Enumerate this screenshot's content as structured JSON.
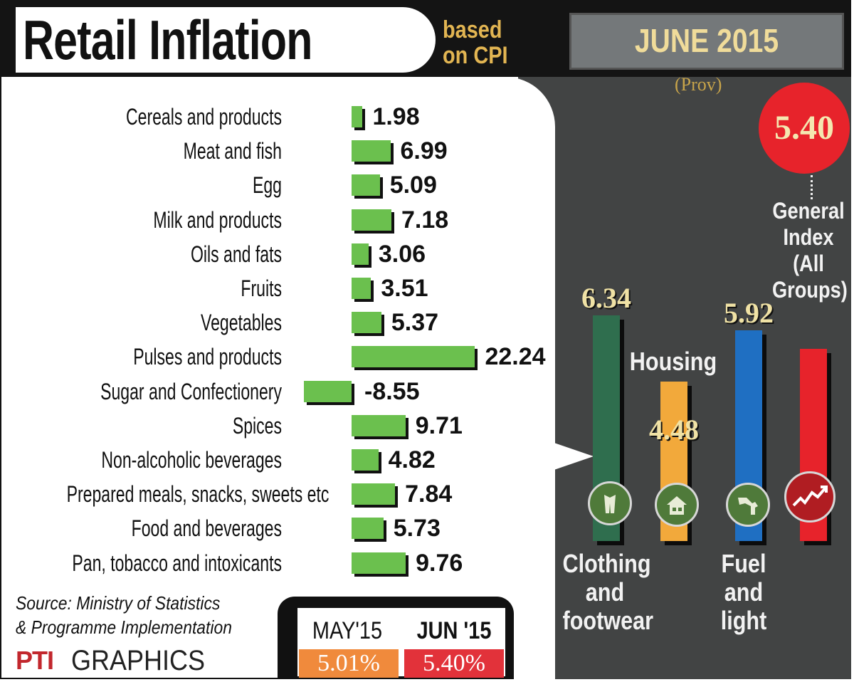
{
  "header": {
    "title": "Retail Inflation",
    "subtitle": "based on CPI",
    "month": "JUNE 2015",
    "prov": "(Prov)"
  },
  "general_index": {
    "value": "5.40",
    "label": "General Index (All Groups)"
  },
  "colors": {
    "food_bar": "#6bc04e",
    "clothing": "#2f6e4e",
    "housing": "#f2a93b",
    "fuel": "#1f6fc2",
    "general": "#e7232b",
    "panel": "#424444",
    "may_box": "#f08a3c",
    "jun_box": "#e2323a"
  },
  "icons": {
    "clothing": "clothing-icon",
    "housing": "house-icon",
    "fuel": "fuel-pump-icon",
    "general": "rising-graph-icon"
  },
  "chart_data": [
    {
      "type": "bar",
      "orientation": "horizontal",
      "categories": [
        "Cereals and products",
        "Meat and fish",
        "Egg",
        "Milk and products",
        "Oils and fats",
        "Fruits",
        "Vegetables",
        "Pulses and products",
        "Sugar and Confectionery",
        "Spices",
        "Non-alcoholic beverages",
        "Prepared meals, snacks, sweets etc",
        "Food and beverages",
        "Pan, tobacco and intoxicants"
      ],
      "values": [
        1.98,
        6.99,
        5.09,
        7.18,
        3.06,
        3.51,
        5.37,
        22.24,
        -8.55,
        9.71,
        4.82,
        7.84,
        5.73,
        9.76
      ],
      "labels": [
        "1.98",
        "6.99",
        "5.09",
        "7.18",
        "3.06",
        "3.51",
        "5.37",
        "22.24",
        "-8.55",
        "9.71",
        "4.82",
        "7.84",
        "5.73",
        "9.76"
      ]
    },
    {
      "type": "bar",
      "orientation": "vertical",
      "categories": [
        "Clothing and footwear",
        "Housing",
        "Fuel and light",
        "General Index (All Groups)"
      ],
      "values": [
        6.34,
        4.48,
        5.92,
        5.4
      ],
      "labels": [
        "6.34",
        "4.48",
        "5.92",
        "5.40"
      ]
    }
  ],
  "footer": {
    "source": "Source: Ministry of Statistics & Programme Implementation",
    "brand_logo": "PTI",
    "brand": "GRAPHICS",
    "compare": {
      "may_label": "MAY'15",
      "jun_label": "JUN '15",
      "may_value": "5.01%",
      "jun_value": "5.40%"
    }
  }
}
